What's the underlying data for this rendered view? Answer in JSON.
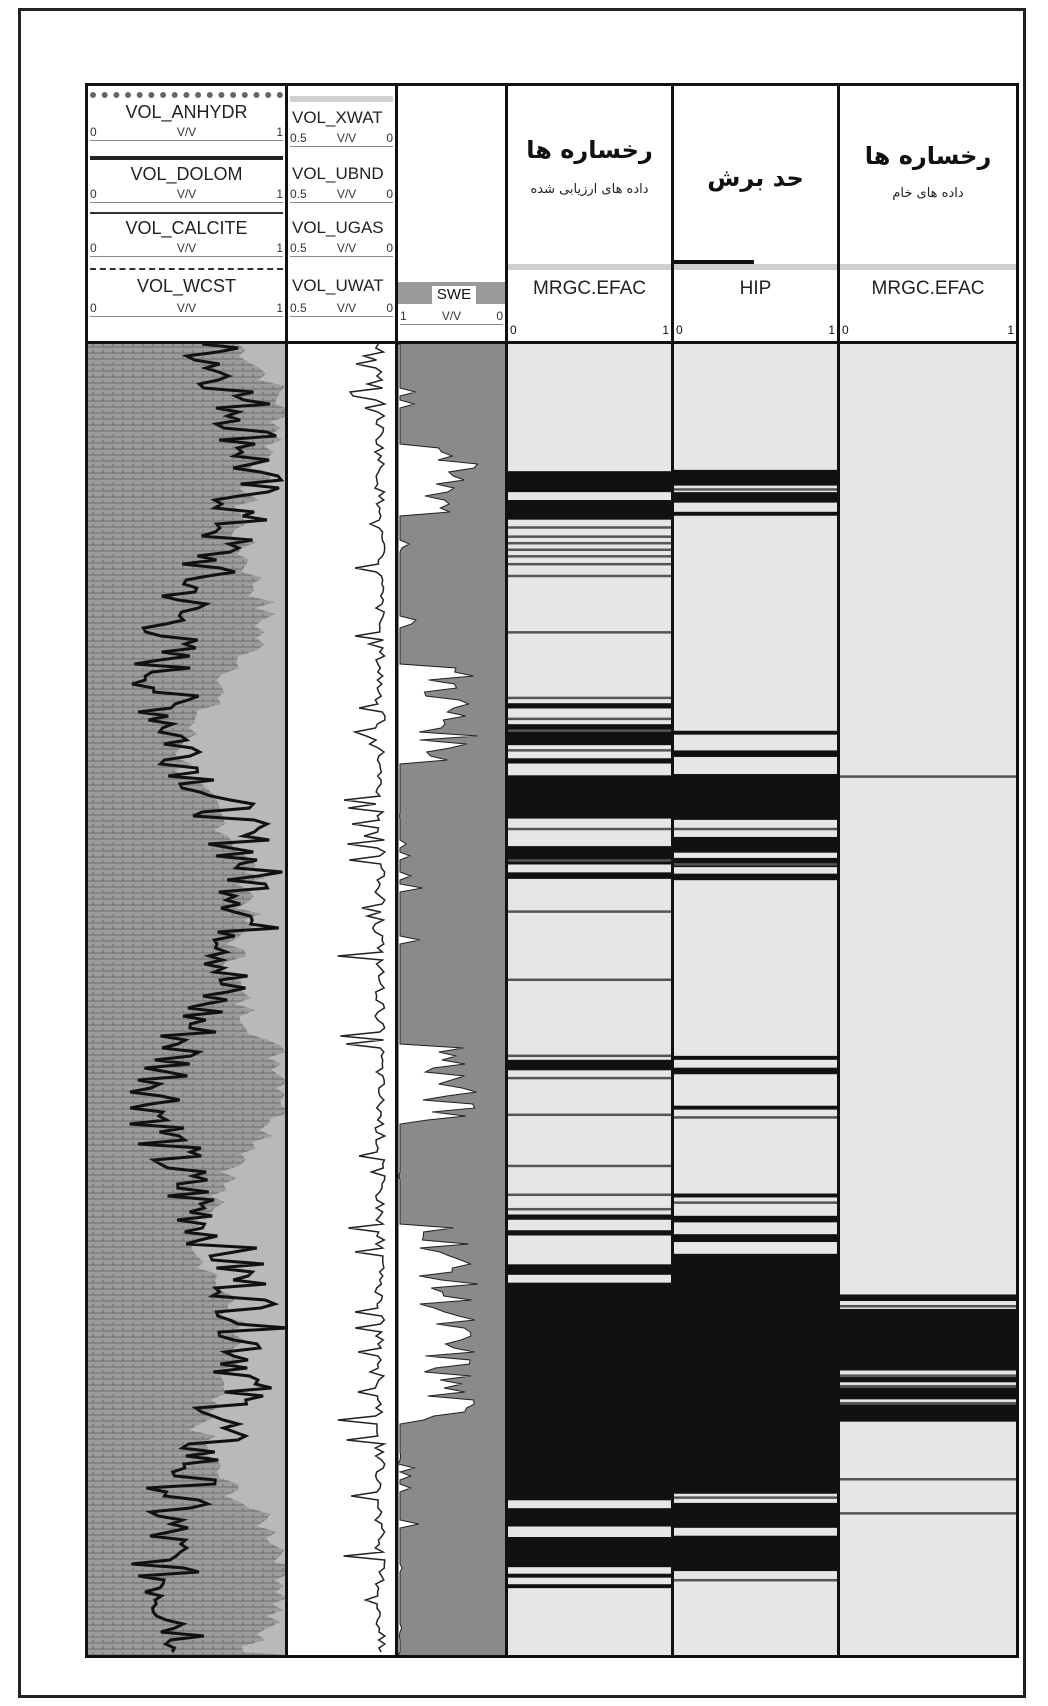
{
  "tracks": {
    "lithology": {
      "curves": [
        {
          "name": "VOL_ANHYDR",
          "unit": "V/V",
          "min": "0",
          "max": "1"
        },
        {
          "name": "VOL_DOLOM",
          "unit": "V/V",
          "min": "0",
          "max": "1"
        },
        {
          "name": "VOL_CALCITE",
          "unit": "V/V",
          "min": "0",
          "max": "1"
        },
        {
          "name": "VOL_WCST",
          "unit": "V/V",
          "min": "0",
          "max": "1"
        }
      ]
    },
    "fluids": {
      "curves": [
        {
          "name": "VOL_XWAT",
          "unit": "V/V",
          "min": "0.5",
          "max": "0"
        },
        {
          "name": "VOL_UBND",
          "unit": "V/V",
          "min": "0.5",
          "max": "0"
        },
        {
          "name": "VOL_UGAS",
          "unit": "V/V",
          "min": "0.5",
          "max": "0"
        },
        {
          "name": "VOL_UWAT",
          "unit": "V/V",
          "min": "0.5",
          "max": "0"
        }
      ]
    },
    "swe": {
      "name": "SWE",
      "unit": "V/V",
      "min": "1",
      "max": "0"
    },
    "facies_evaluated": {
      "title": "رخساره ها",
      "subtitle": "داده های ارزیابی شده",
      "mnemonic": "MRGC.EFAC",
      "min": "0",
      "max": "1"
    },
    "cutoff": {
      "title": "حد برش",
      "mnemonic": "HIP",
      "min": "0",
      "max": "1"
    },
    "facies_raw": {
      "title": "رخساره ها",
      "subtitle": "داده های خام",
      "mnemonic": "MRGC.EFAC",
      "min": "0",
      "max": "1"
    }
  },
  "colors": {
    "background": "#ffffff",
    "border": "#111111",
    "light_fill": "#e6e6e6",
    "gray_fill": "#8a8a8a",
    "dark_fill": "#111111",
    "lith_fill": "#9c9c9c"
  },
  "chart_data": [
    {
      "type": "area",
      "track": "facies_evaluated",
      "mnemonic": "MRGC.EFAC",
      "depth_units": "relative (0 = top of log, 100 = bottom)",
      "dark_intervals": [
        [
          9.7,
          11.3
        ],
        [
          11.9,
          13.4
        ],
        [
          27.4,
          27.8
        ],
        [
          29.0,
          30.6
        ],
        [
          31.6,
          32.0
        ],
        [
          32.9,
          36.2
        ],
        [
          38.3,
          39.7
        ],
        [
          40.3,
          40.8
        ],
        [
          54.6,
          55.4
        ],
        [
          66.4,
          66.8
        ],
        [
          67.6,
          68.0
        ],
        [
          70.2,
          71.0
        ],
        [
          71.6,
          88.2
        ],
        [
          88.8,
          90.2
        ],
        [
          91.0,
          93.3
        ],
        [
          93.8,
          94.1
        ],
        [
          94.6,
          94.9
        ]
      ],
      "thin_lines": [
        13.9,
        14.6,
        15.1,
        15.6,
        16.1,
        16.7,
        17.6,
        21.9,
        26.9,
        28.5,
        29.4,
        30.9,
        36.9,
        39.3,
        43.2,
        48.4,
        54.2,
        55.9,
        58.7,
        62.6,
        64.8,
        65.9
      ]
    },
    {
      "type": "area",
      "track": "cutoff",
      "mnemonic": "HIP",
      "depth_units": "relative (0 = top of log, 100 = bottom)",
      "dark_intervals": [
        [
          9.6,
          10.8
        ],
        [
          11.3,
          12.1
        ],
        [
          12.8,
          13.1
        ],
        [
          29.5,
          29.8
        ],
        [
          31.0,
          31.5
        ],
        [
          32.8,
          36.3
        ],
        [
          37.6,
          38.8
        ],
        [
          39.2,
          39.9
        ],
        [
          40.4,
          40.9
        ],
        [
          54.3,
          54.6
        ],
        [
          55.2,
          55.7
        ],
        [
          58.1,
          58.4
        ],
        [
          64.8,
          65.1
        ],
        [
          66.5,
          67.0
        ],
        [
          67.9,
          68.5
        ],
        [
          69.4,
          87.7
        ],
        [
          88.4,
          90.3
        ],
        [
          90.9,
          93.6
        ]
      ],
      "thin_lines": [
        11.0,
        36.9,
        39.6,
        58.9,
        65.4,
        87.9,
        94.2
      ]
    },
    {
      "type": "area",
      "track": "facies_raw",
      "mnemonic": "MRGC.EFAC",
      "depth_units": "relative (0 = top of log, 100 = bottom)",
      "dark_intervals": [
        [
          72.5,
          73.0
        ],
        [
          73.6,
          78.3
        ],
        [
          78.8,
          79.2
        ],
        [
          79.6,
          80.5
        ],
        [
          80.9,
          82.2
        ]
      ],
      "thin_lines": [
        32.9,
        73.3,
        78.6,
        79.4,
        80.7,
        86.5,
        89.1
      ]
    }
  ]
}
